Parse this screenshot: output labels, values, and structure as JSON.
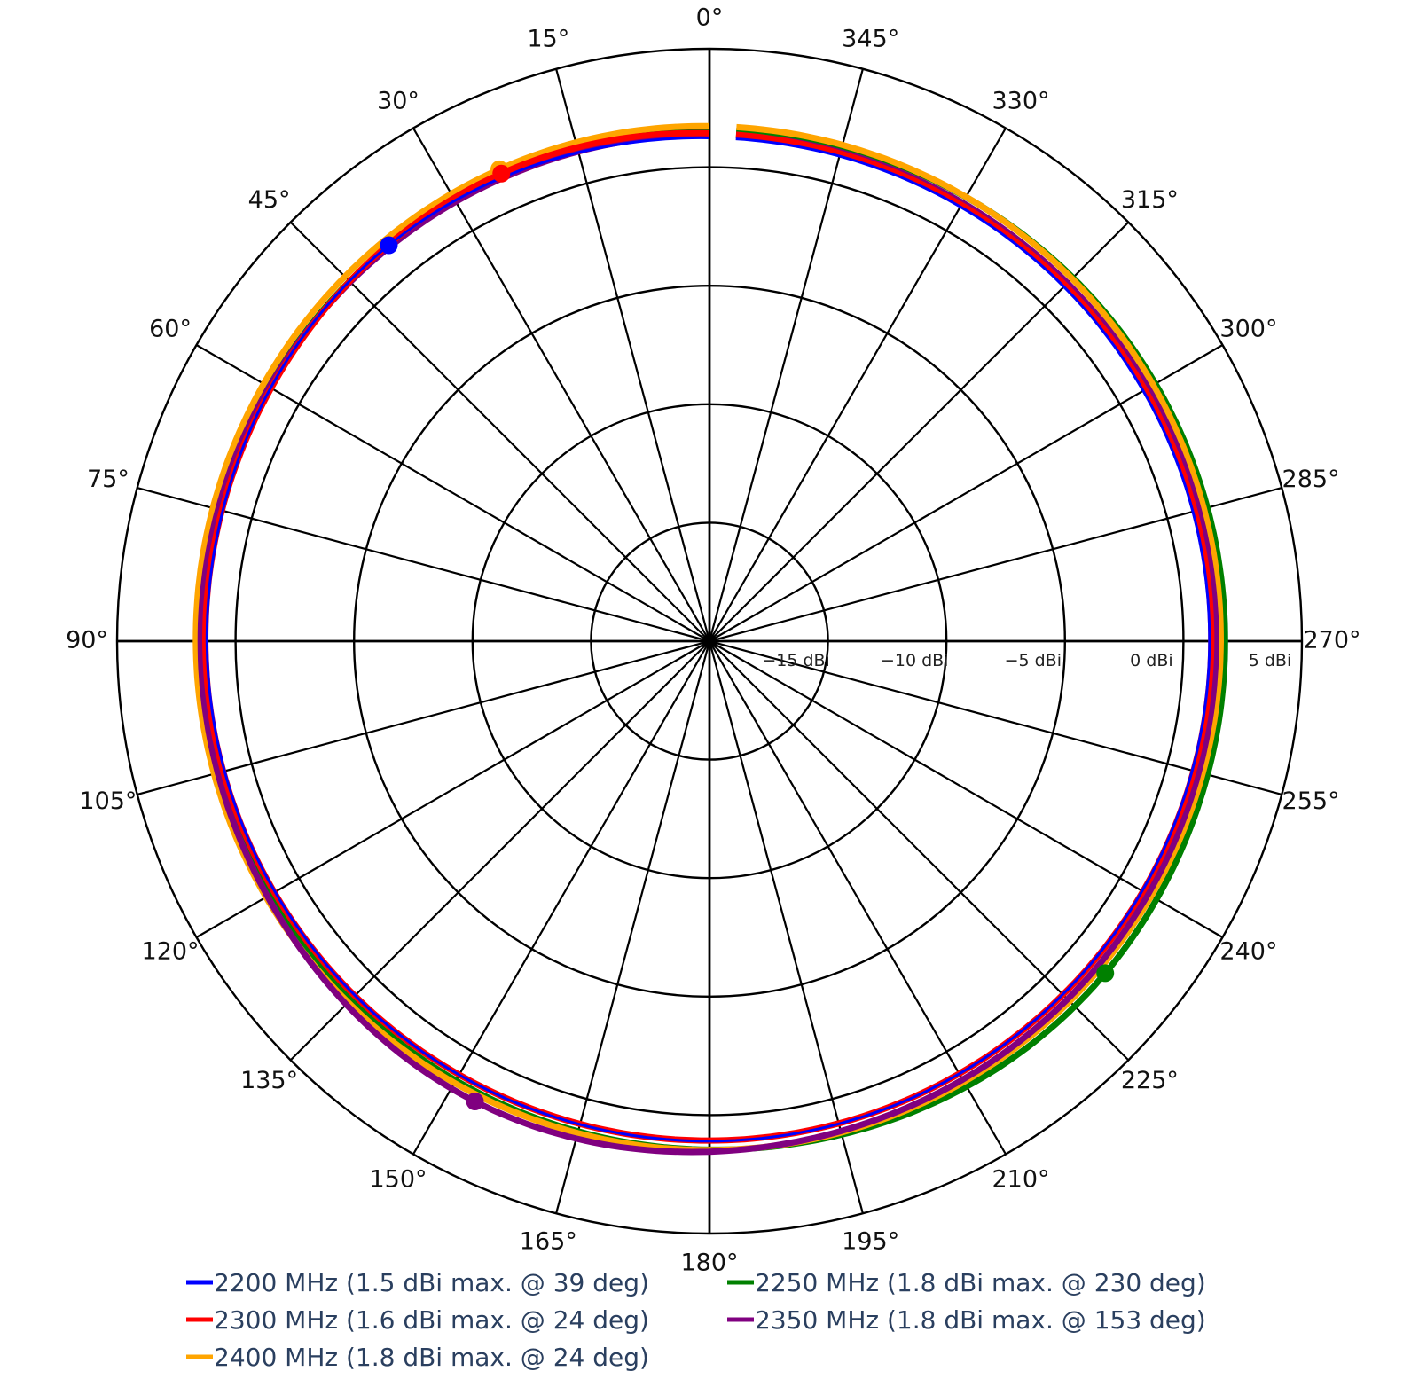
{
  "chart_data": {
    "type": "polar-line",
    "title": "",
    "radial_axis": {
      "unit": "dBi",
      "range": [
        -20,
        5
      ],
      "tick_values": [
        -15,
        -10,
        -5,
        0,
        5
      ],
      "tick_labels": [
        "−15 dBi",
        "−10 dBi",
        "−5 dBi",
        "0 dBi",
        "5 dBi"
      ]
    },
    "angular_axis": {
      "direction": "counterclockwise",
      "rotation": 90,
      "tick_step": 15,
      "tick_labels": [
        "0°",
        "15°",
        "30°",
        "45°",
        "60°",
        "75°",
        "90°",
        "105°",
        "120°",
        "135°",
        "150°",
        "165°",
        "180°",
        "195°",
        "210°",
        "225°",
        "240°",
        "255°",
        "270°",
        "285°",
        "300°",
        "315°",
        "330°",
        "345°"
      ]
    },
    "grid": true,
    "legend_position": "bottom",
    "series": [
      {
        "name": "2200 MHz (1.5 dBi max. @ 39 deg)",
        "color": "#0000ff",
        "max_gain": 1.5,
        "max_angle": 39,
        "gain_0": 1.2,
        "gain_90": 1.2,
        "gain_180": 1.1,
        "gain_270": 1.1
      },
      {
        "name": "2250 MHz (1.8 dBi max. @ 230 deg)",
        "color": "#008000",
        "max_gain": 1.8,
        "max_angle": 230,
        "gain_0": 1.6,
        "gain_90": 1.5,
        "gain_180": 1.5,
        "gain_270": 1.8
      },
      {
        "name": "2300 MHz (1.6 dBi max. @ 24 deg)",
        "color": "#ff0000",
        "max_gain": 1.6,
        "max_angle": 24,
        "gain_0": 1.3,
        "gain_90": 1.3,
        "gain_180": 1.1,
        "gain_270": 1.2
      },
      {
        "name": "2350 MHz (1.8 dBi max. @ 153 deg)",
        "color": "#800080",
        "max_gain": 1.8,
        "max_angle": 153,
        "gain_0": 1.4,
        "gain_90": 1.5,
        "gain_180": 1.4,
        "gain_270": 1.4
      },
      {
        "name": "2400 MHz (1.8 dBi max. @ 24 deg)",
        "color": "#ffa500",
        "max_gain": 1.8,
        "max_angle": 24,
        "gain_0": 1.7,
        "gain_90": 1.7,
        "gain_180": 1.5,
        "gain_270": 1.6
      }
    ]
  },
  "legend": {
    "items": [
      {
        "label": "2200 MHz (1.5 dBi max. @ 39 deg)",
        "color": "#0000ff"
      },
      {
        "label": "2250 MHz (1.8 dBi max. @ 230 deg)",
        "color": "#008000"
      },
      {
        "label": "2300 MHz (1.6 dBi max. @ 24 deg)",
        "color": "#ff0000"
      },
      {
        "label": "2350 MHz (1.8 dBi max. @ 153 deg)",
        "color": "#800080"
      },
      {
        "label": "2400 MHz (1.8 dBi max. @ 24 deg)",
        "color": "#ffa500"
      }
    ]
  }
}
